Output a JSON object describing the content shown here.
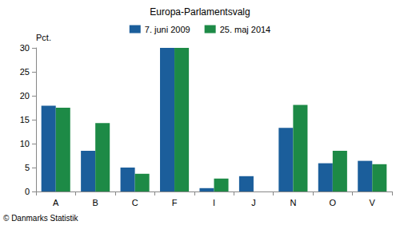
{
  "chart_data": {
    "type": "bar",
    "title": "Europa-Parlamentsvalg",
    "ylabel": "Pct.",
    "categories": [
      "A",
      "B",
      "C",
      "F",
      "I",
      "J",
      "N",
      "O",
      "V"
    ],
    "series": [
      {
        "name": "7. juni 2009",
        "color": "#1b5e9b",
        "values": [
          17.9,
          8.5,
          5.0,
          30,
          0.7,
          3.2,
          13.3,
          5.9,
          6.4
        ]
      },
      {
        "name": "25. maj 2014",
        "color": "#1d8a46",
        "values": [
          17.5,
          14.3,
          3.7,
          30,
          2.7,
          null,
          18.1,
          8.5,
          5.7
        ]
      }
    ],
    "ylim": [
      0,
      30
    ],
    "yticks": [
      0,
      5,
      10,
      15,
      20,
      25,
      30
    ],
    "grid": false,
    "legend": "top",
    "annotations": [
      "© Danmarks Statistik"
    ]
  }
}
